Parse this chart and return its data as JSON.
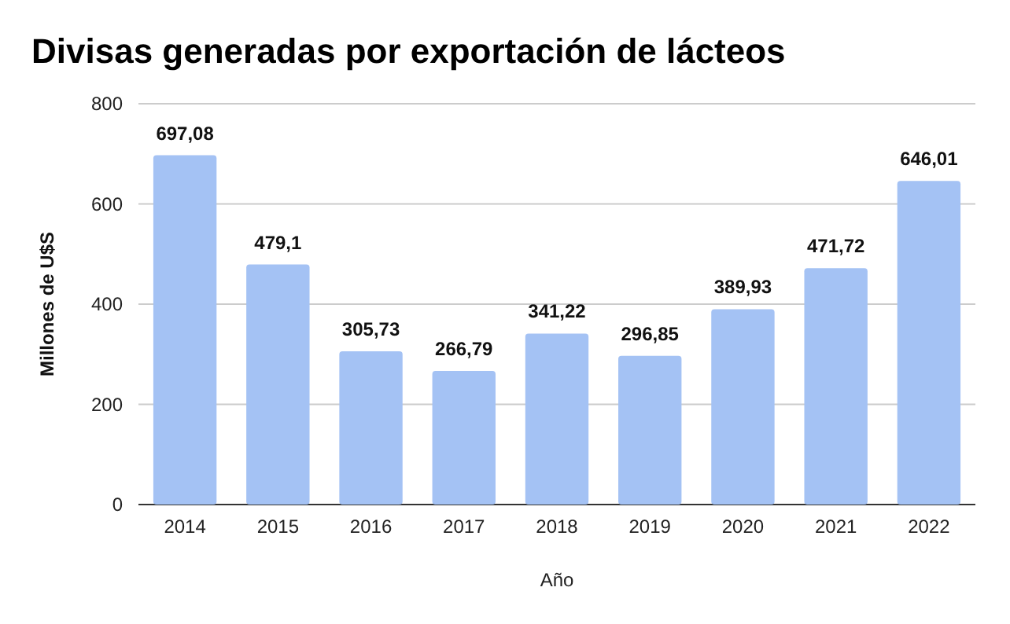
{
  "chart_data": {
    "type": "bar",
    "title": "Divisas generadas por exportación de lácteos",
    "xlabel": "Año",
    "ylabel": "Millones de U$S",
    "categories": [
      "2014",
      "2015",
      "2016",
      "2017",
      "2018",
      "2019",
      "2020",
      "2021",
      "2022"
    ],
    "values": [
      697.08,
      479.1,
      305.73,
      266.79,
      341.22,
      296.85,
      389.93,
      471.72,
      646.01
    ],
    "value_labels": [
      "697,08",
      "479,1",
      "305,73",
      "266,79",
      "341,22",
      "296,85",
      "389,93",
      "471,72",
      "646,01"
    ],
    "color": "#a4c2f4",
    "ylim": [
      0,
      800
    ],
    "yticks": [
      0,
      200,
      400,
      600,
      800
    ],
    "grid": "y"
  }
}
